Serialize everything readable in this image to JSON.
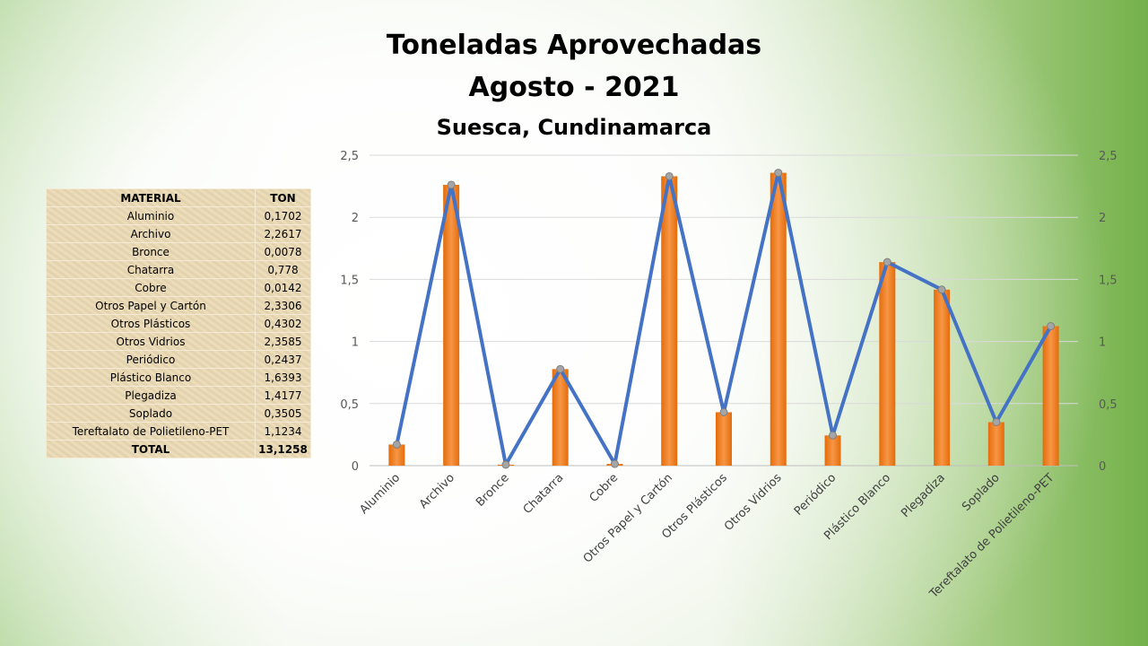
{
  "title": {
    "line1": "Toneladas Aprovechadas",
    "line2": "Agosto - 2021",
    "line3": "Suesca, Cundinamarca"
  },
  "table": {
    "headers": [
      "MATERIAL",
      "TON"
    ],
    "rows": [
      {
        "material": "Aluminio",
        "ton": "0,1702"
      },
      {
        "material": "Archivo",
        "ton": "2,2617"
      },
      {
        "material": "Bronce",
        "ton": "0,0078"
      },
      {
        "material": "Chatarra",
        "ton": "0,778"
      },
      {
        "material": "Cobre",
        "ton": "0,0142"
      },
      {
        "material": "Otros Papel y Cartón",
        "ton": "2,3306"
      },
      {
        "material": "Otros Plásticos",
        "ton": "0,4302"
      },
      {
        "material": "Otros Vidrios",
        "ton": "2,3585"
      },
      {
        "material": "Periódico",
        "ton": "0,2437"
      },
      {
        "material": "Plástico Blanco",
        "ton": "1,6393"
      },
      {
        "material": "Plegadiza",
        "ton": "1,4177"
      },
      {
        "material": "Soplado",
        "ton": "0,3505"
      },
      {
        "material": "Tereftalato de Polietileno-PET",
        "ton": "1,1234"
      }
    ],
    "total_label": "TOTAL",
    "total_value": "13,1258"
  },
  "chart_data": {
    "type": "bar",
    "combo": "bar+line",
    "categories": [
      "Aluminio",
      "Archivo",
      "Bronce",
      "Chatarra",
      "Cobre",
      "Otros Papel y Cartón",
      "Otros Plásticos",
      "Otros Vidrios",
      "Periódico",
      "Plástico Blanco",
      "Plegadiza",
      "Soplado",
      "Tereftalato de Polietileno-PET"
    ],
    "series": [
      {
        "chart": "bar",
        "color": "#ed7d31",
        "values": [
          0.1702,
          2.2617,
          0.0078,
          0.778,
          0.0142,
          2.3306,
          0.4302,
          2.3585,
          0.2437,
          1.6393,
          1.4177,
          0.3505,
          1.1234
        ]
      },
      {
        "chart": "line",
        "axis": "secondary",
        "color": "#4472c4",
        "marker_color": "#a5a5a5",
        "values": [
          0.1702,
          2.2617,
          0.0078,
          0.778,
          0.0142,
          2.3306,
          0.4302,
          2.3585,
          0.2437,
          1.6393,
          1.4177,
          0.3505,
          1.1234
        ]
      }
    ],
    "ylim": [
      0,
      2.5
    ],
    "y2lim": [
      0,
      2.5
    ],
    "yticks": [
      "0",
      "0,5",
      "1",
      "1,5",
      "2",
      "2,5"
    ],
    "ytick_values": [
      0,
      0.5,
      1,
      1.5,
      2,
      2.5
    ],
    "grid": true,
    "legend": "none"
  }
}
